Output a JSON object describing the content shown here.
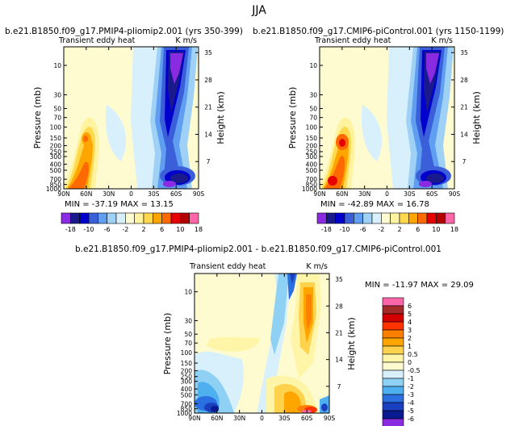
{
  "page_title": "JJA",
  "chart_data": [
    {
      "type": "heatmap",
      "title": "b.e21.B1850.f09_g17.PMIP4-pliomip2.001 (yrs 350-399)",
      "left_label": "Transient eddy heat",
      "units": "K m/s",
      "ylabel": "Pressure (mb)",
      "y2label": "Height (km)",
      "x_ticks": [
        "90N",
        "60N",
        "30N",
        "0",
        "30S",
        "60S",
        "90S"
      ],
      "y_ticks": [
        "10",
        "30",
        "50",
        "70",
        "100",
        "150",
        "200",
        "250",
        "300",
        "400",
        "500",
        "700",
        "850",
        "1000"
      ],
      "y2_ticks": [
        "35",
        "28",
        "21",
        "14",
        "7"
      ],
      "min_max": "MIN = -37.19   MAX =  13.15",
      "levels": [
        "-18",
        "-10",
        "-6",
        "-2",
        "2",
        "6",
        "10",
        "18"
      ]
    },
    {
      "type": "heatmap",
      "title": "b.e21.B1850.f09_g17.CMIP6-piControl.001 (yrs 1150-1199)",
      "left_label": "Transient eddy heat",
      "units": "K m/s",
      "ylabel": "Pressure (mb)",
      "y2label": "Height (km)",
      "x_ticks": [
        "90N",
        "60N",
        "30N",
        "0",
        "30S",
        "60S",
        "90S"
      ],
      "y_ticks": [
        "10",
        "30",
        "50",
        "70",
        "100",
        "150",
        "200",
        "250",
        "300",
        "400",
        "500",
        "700",
        "850",
        "1000"
      ],
      "y2_ticks": [
        "35",
        "28",
        "21",
        "14",
        "7"
      ],
      "min_max": "MIN = -42.89   MAX =  16.78",
      "levels": [
        "-18",
        "-10",
        "-6",
        "-2",
        "2",
        "6",
        "10",
        "18"
      ]
    },
    {
      "type": "heatmap",
      "title": "b.e21.B1850.f09_g17.PMIP4-pliomip2.001 - b.e21.B1850.f09_g17.CMIP6-piControl.001",
      "left_label": "Transient eddy heat",
      "units": "K m/s",
      "ylabel": "Pressure (mb)",
      "y2label": "Height (km)",
      "x_ticks": [
        "90N",
        "60N",
        "30N",
        "0",
        "30S",
        "60S",
        "90S"
      ],
      "y_ticks": [
        "10",
        "30",
        "50",
        "70",
        "100",
        "150",
        "200",
        "250",
        "300",
        "400",
        "500",
        "700",
        "850",
        "1000"
      ],
      "y2_ticks": [
        "35",
        "28",
        "21",
        "14",
        "7"
      ],
      "min_max": "MIN = -11.97   MAX =  29.09",
      "levels": [
        "6",
        "5",
        "4",
        "3",
        "2",
        "1",
        "0.5",
        "0",
        "-0.5",
        "-1",
        "-2",
        "-3",
        "-4",
        "-5",
        "-6"
      ]
    }
  ],
  "colors": {
    "abs_scale": [
      "#8a2be2",
      "#1a1a8c",
      "#0000cd",
      "#3a5fd9",
      "#5f9ef0",
      "#9fd0f5",
      "#d8f0fb",
      "#fffbd1",
      "#fff3a0",
      "#ffd84d",
      "#ffa500",
      "#ff6a00",
      "#e60000",
      "#b30000",
      "#ff66aa"
    ],
    "diff_scale": [
      "#ff66aa",
      "#a52a2a",
      "#d40000",
      "#ff3300",
      "#ff7f00",
      "#ffa500",
      "#ffd24d",
      "#fff5a8",
      "#fffbd1",
      "#d8f0fb",
      "#8fd0f5",
      "#4fb0f0",
      "#2a70e0",
      "#1a3fc0",
      "#0a1a90",
      "#8a2be2"
    ]
  }
}
